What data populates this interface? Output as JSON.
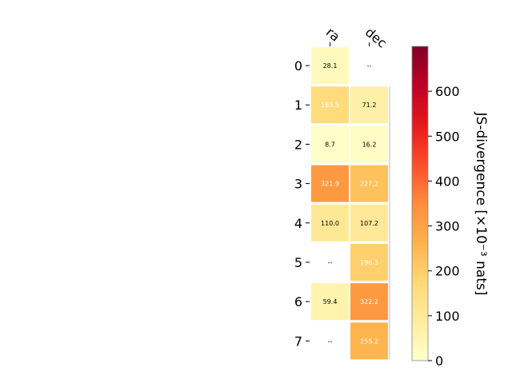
{
  "chart_data": {
    "type": "heatmap",
    "columns": [
      "ra",
      "dec"
    ],
    "rows": [
      "0",
      "1",
      "2",
      "3",
      "4",
      "5",
      "6",
      "7"
    ],
    "values": [
      [
        28.1,
        null
      ],
      [
        163.5,
        71.2
      ],
      [
        8.7,
        16.2
      ],
      [
        321.9,
        227.2
      ],
      [
        110.0,
        107.2
      ],
      [
        null,
        196.3
      ],
      [
        59.4,
        322.2
      ],
      [
        null,
        255.2
      ]
    ],
    "cell_labels": [
      [
        "28.1",
        "--"
      ],
      [
        "163.5",
        "71.2"
      ],
      [
        "8.7",
        "16.2"
      ],
      [
        "321.9",
        "227.2"
      ],
      [
        "110.0",
        "107.2"
      ],
      [
        "--",
        "196.3"
      ],
      [
        "59.4",
        "322.2"
      ],
      [
        "--",
        "255.2"
      ]
    ],
    "missing_label": "--",
    "colorbar": {
      "label": "JS-divergence [×10⁻³ nats]",
      "range": [
        0,
        700
      ],
      "ticks": [
        "0",
        "100",
        "200",
        "300",
        "400",
        "500",
        "600"
      ],
      "colormap": "YlOrRd",
      "colors": [
        "#ffffcc",
        "#ffeda0",
        "#fed976",
        "#feb24c",
        "#fd8d3c",
        "#fc4e2a",
        "#e31a1c",
        "#bd0026",
        "#800026"
      ]
    },
    "legend": "none",
    "grid": false
  }
}
